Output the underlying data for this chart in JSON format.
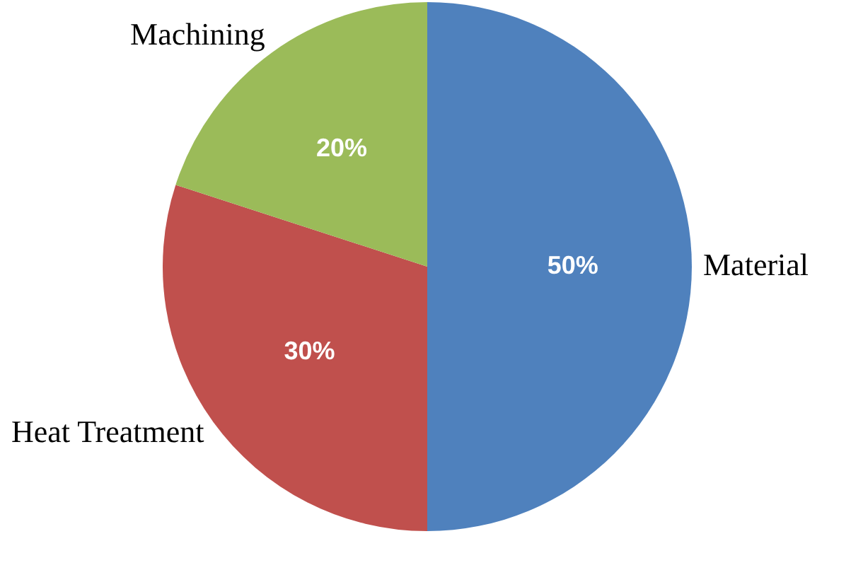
{
  "chart_data": {
    "type": "pie",
    "categories": [
      "Material",
      "Heat Treatment",
      "Machining"
    ],
    "values": [
      50,
      30,
      20
    ],
    "value_labels": [
      "50%",
      "30%",
      "20%"
    ],
    "colors": [
      "#4f81bd",
      "#c0504d",
      "#9bbb59"
    ],
    "legend": false
  }
}
